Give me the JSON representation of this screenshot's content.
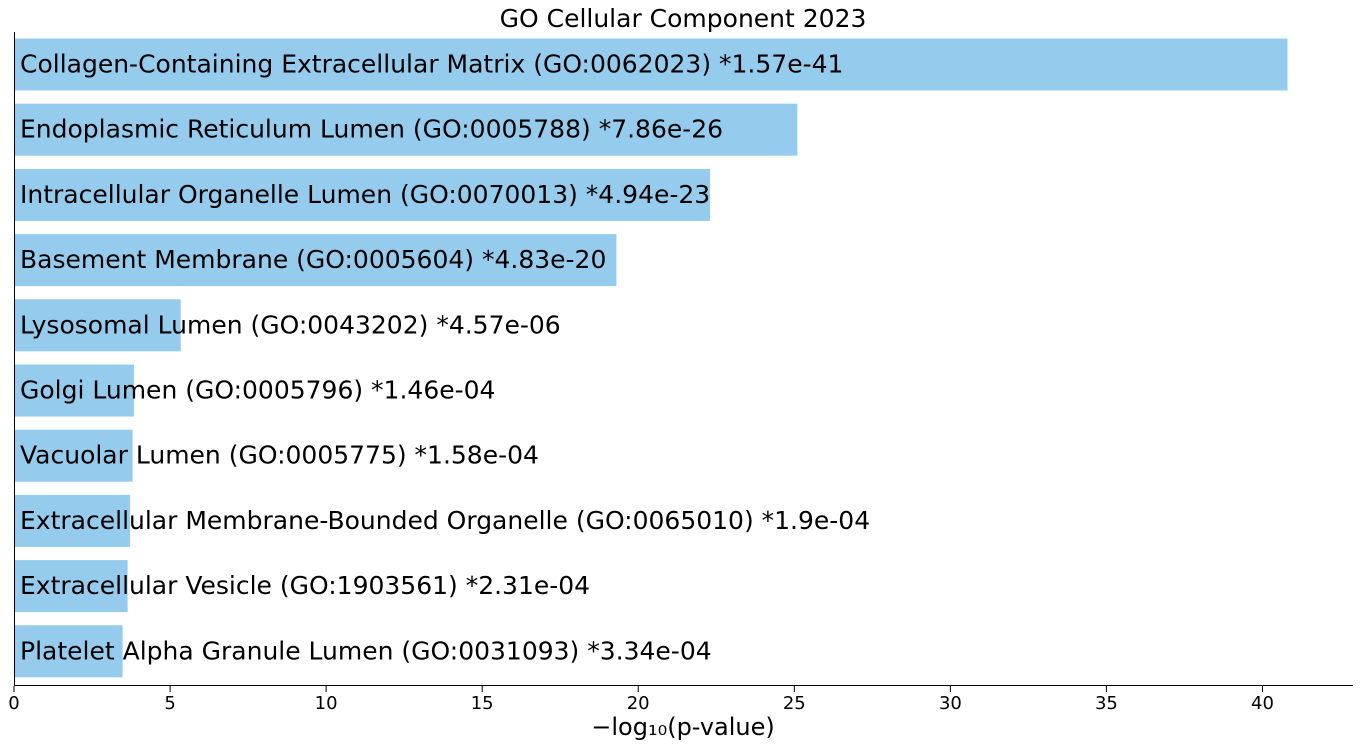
{
  "chart_data": {
    "type": "bar",
    "orientation": "horizontal",
    "title": "GO Cellular Component 2023",
    "xlabel": "−log₁₀(p-value)",
    "ylabel": "",
    "xlim": [
      0,
      42.9
    ],
    "xticks": [
      0,
      5,
      10,
      15,
      20,
      25,
      30,
      35,
      40
    ],
    "grid": false,
    "bar_color": "#95cbed",
    "categories": [
      "Collagen-Containing Extracellular Matrix (GO:0062023)  *1.57e-41",
      "Endoplasmic Reticulum Lumen (GO:0005788)  *7.86e-26",
      "Intracellular Organelle Lumen (GO:0070013)  *4.94e-23",
      "Basement Membrane (GO:0005604)  *4.83e-20",
      "Lysosomal Lumen (GO:0043202)  *4.57e-06",
      "Golgi Lumen (GO:0005796)  *1.46e-04",
      "Vacuolar Lumen (GO:0005775)  *1.58e-04",
      "Extracellular Membrane-Bounded Organelle (GO:0065010)  *1.9e-04",
      "Extracellular Vesicle (GO:1903561)  *2.31e-04",
      "Platelet Alpha Granule Lumen (GO:0031093)  *3.34e-04"
    ],
    "values": [
      40.8,
      25.1,
      22.3,
      19.3,
      5.34,
      3.84,
      3.8,
      3.72,
      3.64,
      3.48
    ]
  }
}
